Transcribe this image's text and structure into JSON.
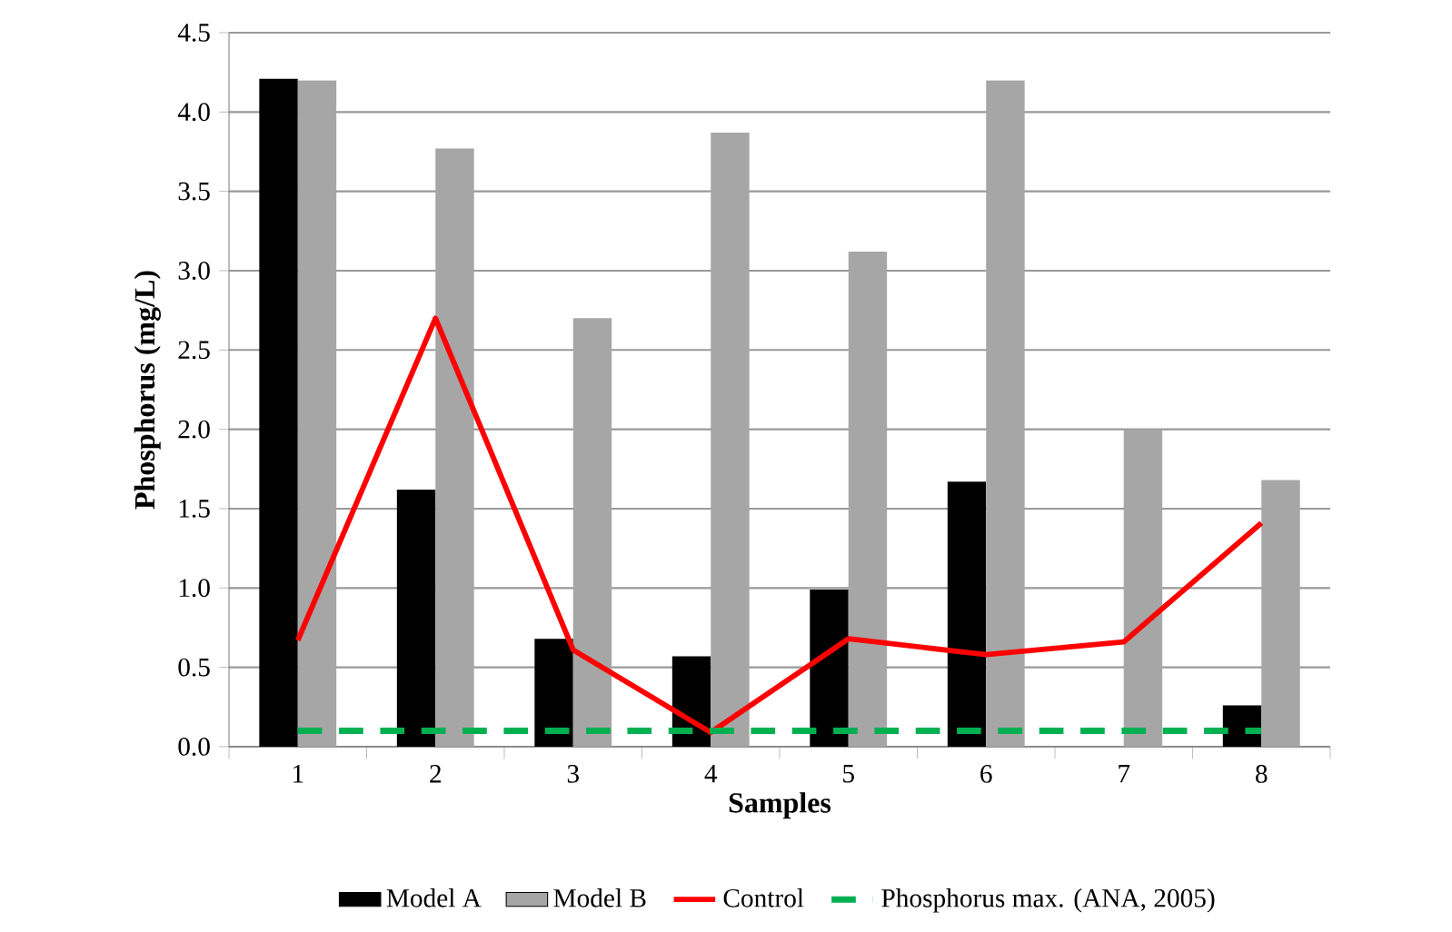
{
  "chart_data": {
    "type": "bar",
    "xlabel": "Samples",
    "ylabel": "Phosphorus  (mg/L)",
    "categories": [
      "1",
      "2",
      "3",
      "4",
      "5",
      "6",
      "7",
      "8"
    ],
    "series": [
      {
        "name": "Model A",
        "color": "#000000",
        "values": [
          4.21,
          1.62,
          0.68,
          0.57,
          0.99,
          1.67,
          null,
          0.26
        ]
      },
      {
        "name": "Model B",
        "color": "#a6a6a6",
        "values": [
          4.2,
          3.77,
          2.7,
          3.87,
          3.12,
          4.2,
          2.0,
          1.68
        ]
      },
      {
        "name": "Control",
        "type": "line",
        "color": "#ff0000",
        "values": [
          0.67,
          2.7,
          0.61,
          0.09,
          0.68,
          0.58,
          0.66,
          1.41
        ]
      },
      {
        "name": "Phosphorus max. (ANA, 2005)",
        "type": "line",
        "line_style": "dashed",
        "color": "#00b050",
        "values": [
          0.1,
          0.1,
          0.1,
          0.1,
          0.1,
          0.1,
          0.1,
          0.1
        ]
      }
    ],
    "ylim": [
      0,
      4.5
    ],
    "yticks": [
      {
        "value": 0,
        "label": "0.0"
      },
      {
        "value": 0.5,
        "label": "0.5"
      },
      {
        "value": 1,
        "label": "1.0"
      },
      {
        "value": 1.5,
        "label": "1.5"
      },
      {
        "value": 2,
        "label": "2.0"
      },
      {
        "value": 2.5,
        "label": "2.5"
      },
      {
        "value": 3,
        "label": "3.0"
      },
      {
        "value": 3.5,
        "label": "3.5"
      },
      {
        "value": 4,
        "label": "4.0"
      },
      {
        "value": 4.5,
        "label": "4.5"
      }
    ],
    "grid": "y",
    "legend": "bottom"
  }
}
